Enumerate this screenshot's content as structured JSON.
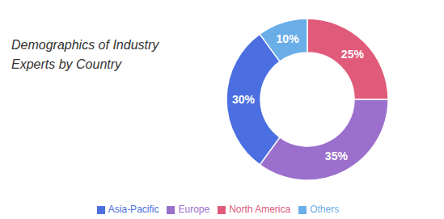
{
  "chart_data": {
    "type": "pie",
    "title": "Demographics of Industry\nExperts by Country",
    "categories": [
      "North America",
      "Europe",
      "Asia-Pacific",
      "Others"
    ],
    "values": [
      25,
      35,
      30,
      10
    ],
    "value_labels": [
      "25%",
      "35%",
      "30%",
      "10%"
    ],
    "colors": [
      "#E05A7A",
      "#9B6FCC",
      "#4B6FE0",
      "#6AAEE8"
    ],
    "data_labels": true,
    "legend": "bottom"
  }
}
